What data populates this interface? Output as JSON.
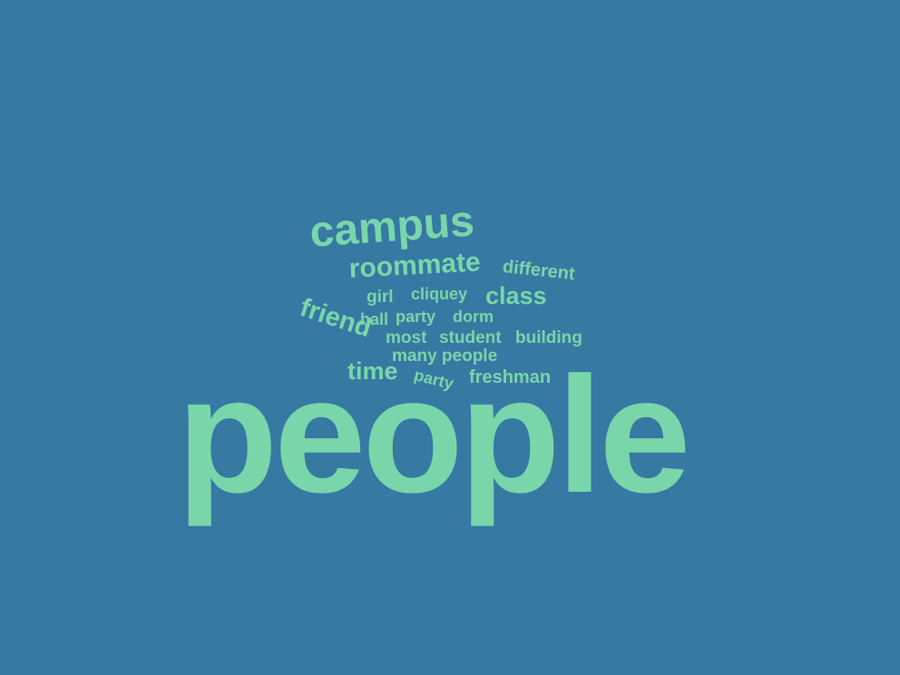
{
  "colors": {
    "background": "#3679A2",
    "word": "#79D6AA"
  },
  "words": [
    {
      "id": "people-large",
      "text": "people"
    },
    {
      "id": "campus",
      "text": "campus"
    },
    {
      "id": "roommate",
      "text": "roommate"
    },
    {
      "id": "different",
      "text": "different"
    },
    {
      "id": "girl",
      "text": "girl"
    },
    {
      "id": "cliquey",
      "text": "cliquey"
    },
    {
      "id": "class",
      "text": "class"
    },
    {
      "id": "friend",
      "text": "friend"
    },
    {
      "id": "hall",
      "text": "hall"
    },
    {
      "id": "party",
      "text": "party"
    },
    {
      "id": "dorm",
      "text": "dorm"
    },
    {
      "id": "most",
      "text": "most"
    },
    {
      "id": "student",
      "text": "student"
    },
    {
      "id": "building",
      "text": "building"
    },
    {
      "id": "many-people",
      "text": "many people"
    },
    {
      "id": "time",
      "text": "time"
    },
    {
      "id": "party-rotated",
      "text": "party"
    },
    {
      "id": "freshman",
      "text": "freshman"
    }
  ]
}
